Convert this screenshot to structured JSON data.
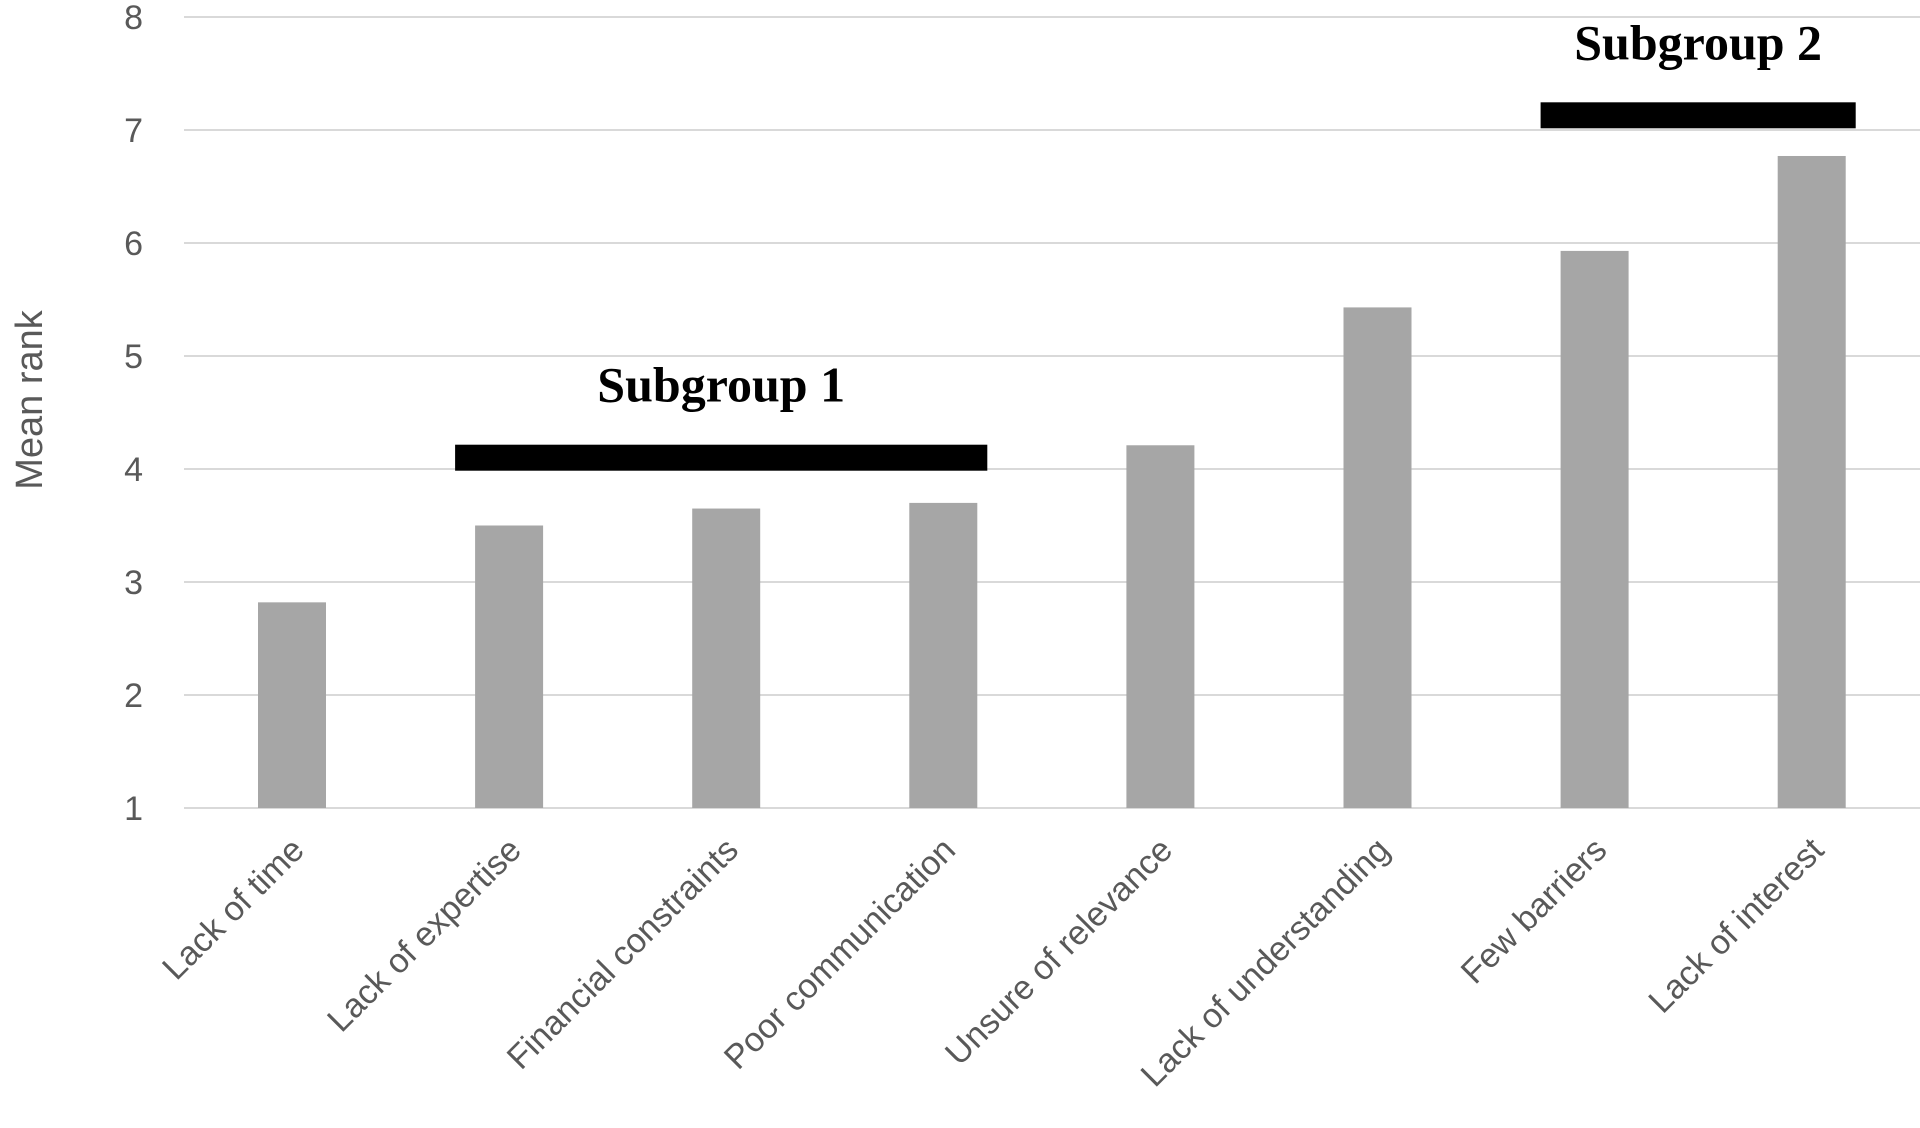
{
  "chart_data": {
    "type": "bar",
    "title": "",
    "xlabel": "",
    "ylabel": "Mean rank",
    "ylim": [
      1,
      8
    ],
    "yticks": [
      1,
      2,
      3,
      4,
      5,
      6,
      7,
      8
    ],
    "grid": true,
    "categories": [
      "Lack of time",
      "Lack of expertise",
      "Financial constraints",
      "Poor communication",
      "Unsure of relevance",
      "Lack of understanding",
      "Few barriers",
      "Lack of interest"
    ],
    "values": [
      2.82,
      3.5,
      3.65,
      3.7,
      4.21,
      5.43,
      5.93,
      6.77
    ],
    "colors": {
      "bar": "#a6a6a6",
      "grid": "#d9d9d9",
      "text": "#595959",
      "annotation": "#000000"
    },
    "annotations": [
      {
        "label": "Subgroup 1",
        "from_category": "Lack of expertise",
        "to_category": "Poor communication",
        "y": 4.1
      },
      {
        "label": "Subgroup 2",
        "from_category": "Few barriers",
        "to_category": "Lack of interest",
        "y": 7.13
      }
    ]
  }
}
